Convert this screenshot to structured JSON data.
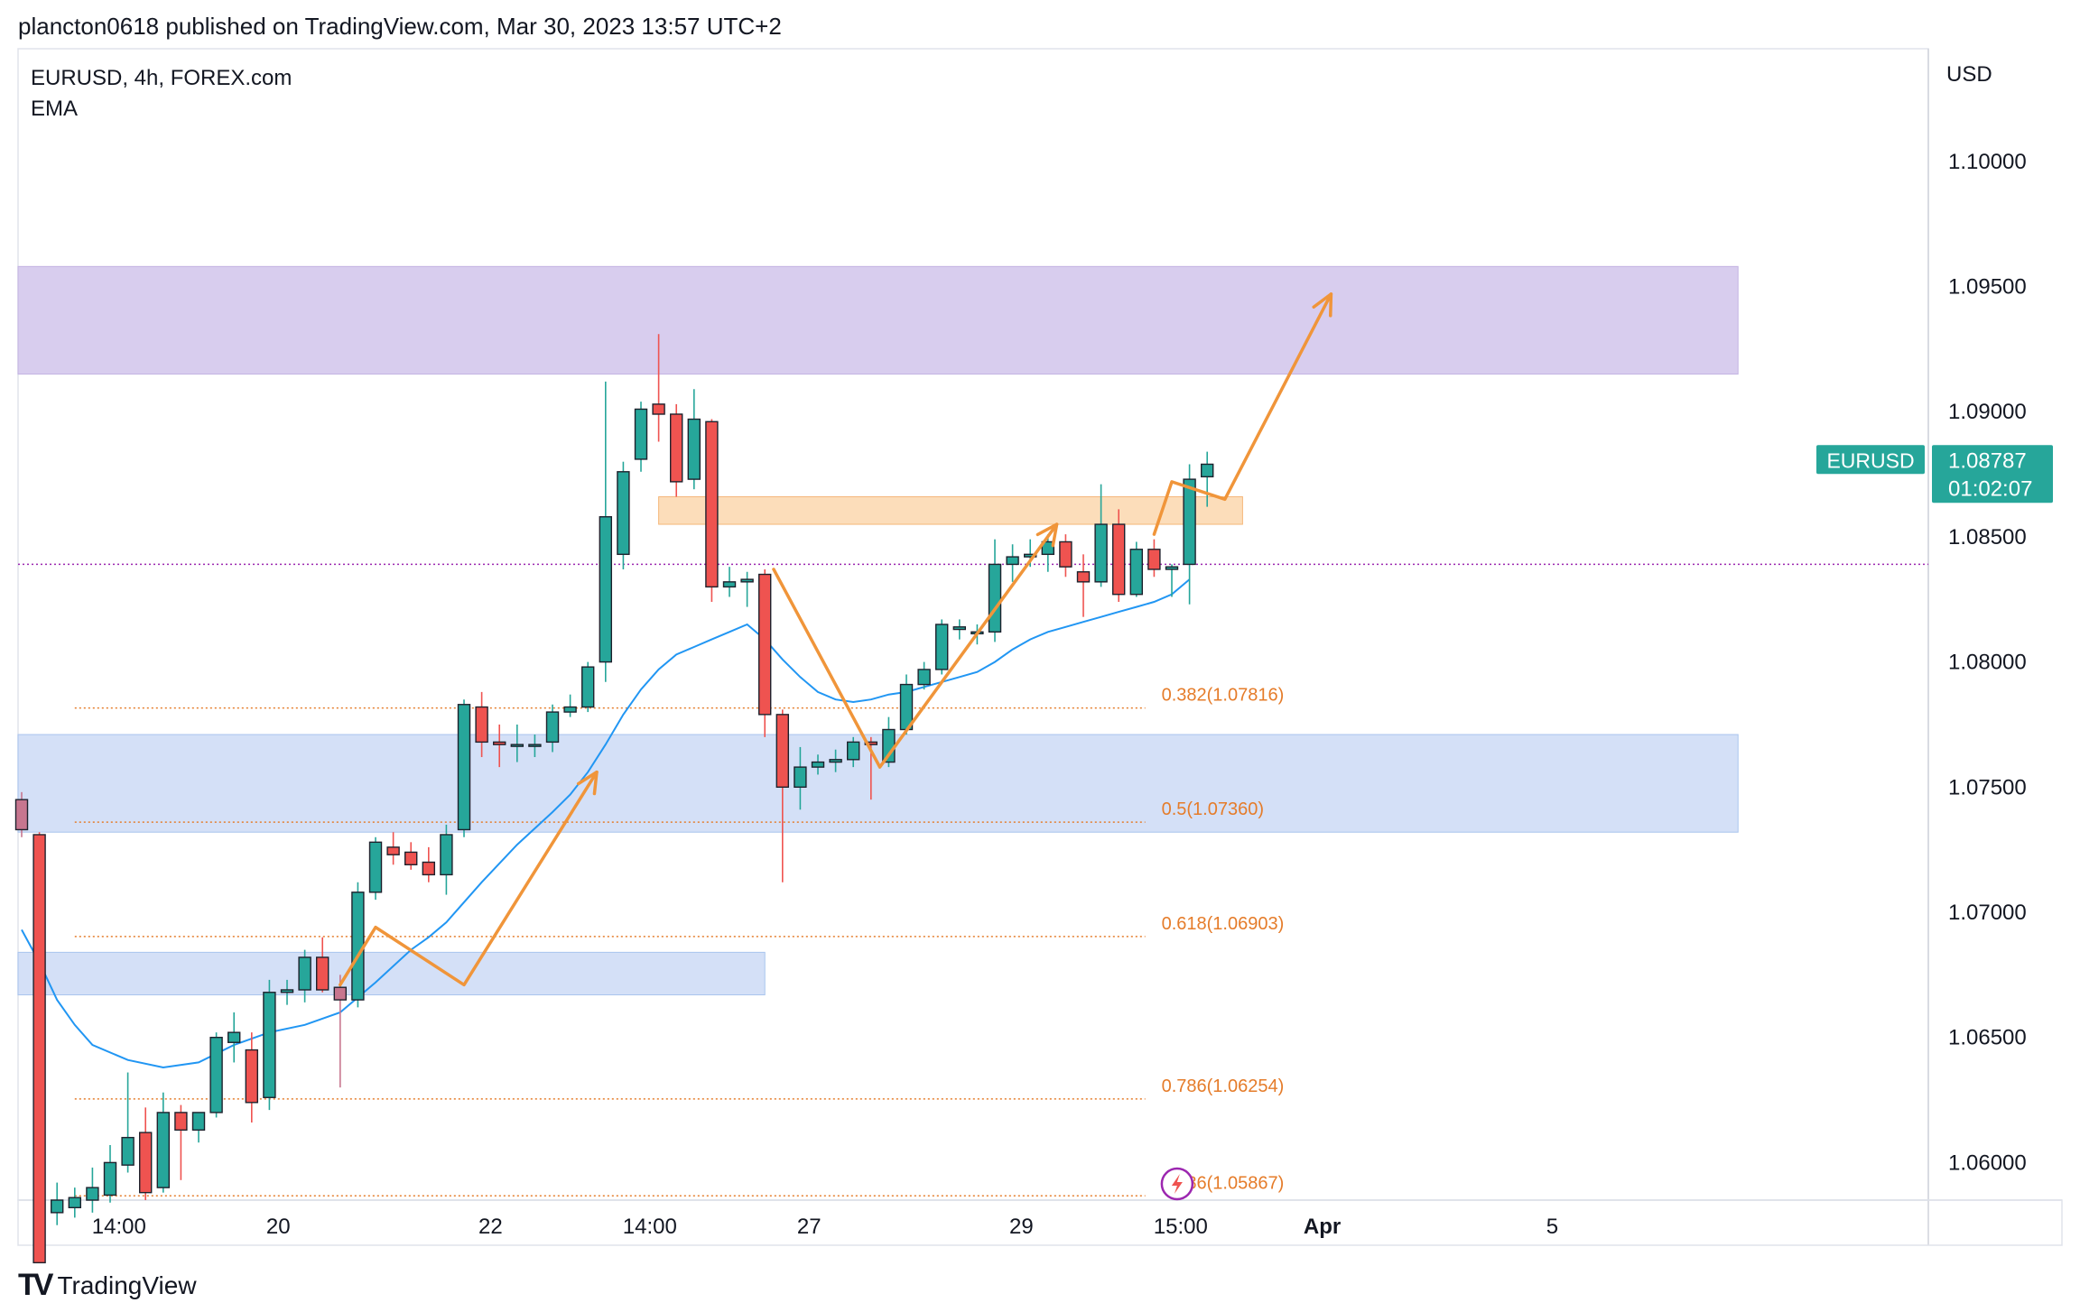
{
  "header": {
    "published_line": "plancton0618 published on TradingView.com, Mar 30, 2023 13:57 UTC+2"
  },
  "legend": {
    "symbol_line": "EURUSD, 4h, FOREX.com",
    "indicator": "EMA"
  },
  "footer": {
    "logo": "TV",
    "brand": "TradingView"
  },
  "colors": {
    "up": "#26a69a",
    "down": "#ef5350",
    "ema": "#2196f3",
    "annotation": "#f0953a",
    "fib": "#e57c2a",
    "supply_zone": "#d4c8ec",
    "demand_zone": "#cfddf6",
    "resistance": "#fcd9b3",
    "last_price_bg": "#26a69a",
    "ref_line": "#9c27b0"
  },
  "chart_data": {
    "type": "candlestick",
    "symbol": "EURUSD",
    "timeframe": "4h",
    "source": "FOREX.com",
    "currency": "USD",
    "y_range": [
      1.0585,
      1.1045
    ],
    "y_ticks": [
      "1.10000",
      "1.09500",
      "1.09000",
      "1.08500",
      "1.08000",
      "1.07500",
      "1.07000",
      "1.06500",
      "1.06000"
    ],
    "x_ticks": [
      {
        "label": "14:00",
        "bar": 5.5,
        "bold": false
      },
      {
        "label": "20",
        "bar": 14.5,
        "bold": false
      },
      {
        "label": "22",
        "bar": 26.5,
        "bold": false
      },
      {
        "label": "14:00",
        "bar": 35.5,
        "bold": false
      },
      {
        "label": "27",
        "bar": 44.5,
        "bold": false
      },
      {
        "label": "29",
        "bar": 56.5,
        "bold": false
      },
      {
        "label": "15:00",
        "bar": 65.5,
        "bold": false
      },
      {
        "label": "Apr",
        "bar": 73.5,
        "bold": true
      },
      {
        "label": "5",
        "bar": 86.5,
        "bold": false
      }
    ],
    "candles": [
      {
        "o": 1.0745,
        "h": 1.0748,
        "l": 1.073,
        "c": 1.0733,
        "dim": true
      },
      {
        "o": 1.0731,
        "h": 1.0732,
        "l": 1.056,
        "c": 1.056
      },
      {
        "o": 1.058,
        "h": 1.0592,
        "l": 1.0575,
        "c": 1.0585
      },
      {
        "o": 1.0582,
        "h": 1.059,
        "l": 1.0578,
        "c": 1.0586
      },
      {
        "o": 1.0585,
        "h": 1.0598,
        "l": 1.058,
        "c": 1.059
      },
      {
        "o": 1.0587,
        "h": 1.0607,
        "l": 1.0584,
        "c": 1.06
      },
      {
        "o": 1.0599,
        "h": 1.0636,
        "l": 1.0596,
        "c": 1.061
      },
      {
        "o": 1.0612,
        "h": 1.0622,
        "l": 1.0585,
        "c": 1.0588
      },
      {
        "o": 1.059,
        "h": 1.0628,
        "l": 1.0588,
        "c": 1.062
      },
      {
        "o": 1.062,
        "h": 1.0623,
        "l": 1.0593,
        "c": 1.0613
      },
      {
        "o": 1.0613,
        "h": 1.062,
        "l": 1.0608,
        "c": 1.062
      },
      {
        "o": 1.062,
        "h": 1.0652,
        "l": 1.0618,
        "c": 1.065
      },
      {
        "o": 1.0648,
        "h": 1.066,
        "l": 1.064,
        "c": 1.0652
      },
      {
        "o": 1.0645,
        "h": 1.0652,
        "l": 1.0616,
        "c": 1.0624
      },
      {
        "o": 1.0626,
        "h": 1.0673,
        "l": 1.0621,
        "c": 1.0668
      },
      {
        "o": 1.0668,
        "h": 1.0673,
        "l": 1.0663,
        "c": 1.0669
      },
      {
        "o": 1.0669,
        "h": 1.0685,
        "l": 1.0664,
        "c": 1.0682
      },
      {
        "o": 1.0682,
        "h": 1.069,
        "l": 1.0668,
        "c": 1.0669
      },
      {
        "o": 1.067,
        "h": 1.0675,
        "l": 1.063,
        "c": 1.0665,
        "dim": true
      },
      {
        "o": 1.0665,
        "h": 1.0712,
        "l": 1.0662,
        "c": 1.0708
      },
      {
        "o": 1.0708,
        "h": 1.073,
        "l": 1.0705,
        "c": 1.0728
      },
      {
        "o": 1.0726,
        "h": 1.0732,
        "l": 1.0719,
        "c": 1.0723
      },
      {
        "o": 1.0724,
        "h": 1.0728,
        "l": 1.0717,
        "c": 1.0719
      },
      {
        "o": 1.072,
        "h": 1.0726,
        "l": 1.0712,
        "c": 1.0715
      },
      {
        "o": 1.0715,
        "h": 1.0735,
        "l": 1.0707,
        "c": 1.0731
      },
      {
        "o": 1.0733,
        "h": 1.0785,
        "l": 1.073,
        "c": 1.0783
      },
      {
        "o": 1.0782,
        "h": 1.0788,
        "l": 1.0762,
        "c": 1.0768
      },
      {
        "o": 1.0768,
        "h": 1.0775,
        "l": 1.0758,
        "c": 1.0767
      },
      {
        "o": 1.0767,
        "h": 1.0775,
        "l": 1.076,
        "c": 1.0767
      },
      {
        "o": 1.0767,
        "h": 1.0771,
        "l": 1.0762,
        "c": 1.0767
      },
      {
        "o": 1.0768,
        "h": 1.0783,
        "l": 1.0764,
        "c": 1.078
      },
      {
        "o": 1.078,
        "h": 1.0787,
        "l": 1.0778,
        "c": 1.0782
      },
      {
        "o": 1.0782,
        "h": 1.08,
        "l": 1.078,
        "c": 1.0798
      },
      {
        "o": 1.08,
        "h": 1.0912,
        "l": 1.0792,
        "c": 1.0858
      },
      {
        "o": 1.0843,
        "h": 1.088,
        "l": 1.0837,
        "c": 1.0876
      },
      {
        "o": 1.0881,
        "h": 1.0904,
        "l": 1.0876,
        "c": 1.0901
      },
      {
        "o": 1.0903,
        "h": 1.0931,
        "l": 1.0888,
        "c": 1.0899
      },
      {
        "o": 1.0899,
        "h": 1.0903,
        "l": 1.0866,
        "c": 1.0872
      },
      {
        "o": 1.0873,
        "h": 1.0909,
        "l": 1.0869,
        "c": 1.0897
      },
      {
        "o": 1.0896,
        "h": 1.0897,
        "l": 1.0824,
        "c": 1.083
      },
      {
        "o": 1.083,
        "h": 1.0838,
        "l": 1.0826,
        "c": 1.0832
      },
      {
        "o": 1.0832,
        "h": 1.0836,
        "l": 1.0822,
        "c": 1.0833
      },
      {
        "o": 1.0835,
        "h": 1.0837,
        "l": 1.077,
        "c": 1.0779
      },
      {
        "o": 1.0779,
        "h": 1.0781,
        "l": 1.0712,
        "c": 1.075
      },
      {
        "o": 1.075,
        "h": 1.0766,
        "l": 1.0741,
        "c": 1.0758
      },
      {
        "o": 1.0758,
        "h": 1.0763,
        "l": 1.0755,
        "c": 1.076
      },
      {
        "o": 1.076,
        "h": 1.0765,
        "l": 1.0756,
        "c": 1.0761
      },
      {
        "o": 1.0761,
        "h": 1.077,
        "l": 1.0758,
        "c": 1.0768
      },
      {
        "o": 1.0768,
        "h": 1.077,
        "l": 1.0745,
        "c": 1.0767
      },
      {
        "o": 1.076,
        "h": 1.0778,
        "l": 1.0758,
        "c": 1.0773
      },
      {
        "o": 1.0773,
        "h": 1.0795,
        "l": 1.0771,
        "c": 1.0791
      },
      {
        "o": 1.0791,
        "h": 1.08,
        "l": 1.0789,
        "c": 1.0797
      },
      {
        "o": 1.0797,
        "h": 1.0817,
        "l": 1.0795,
        "c": 1.0815
      },
      {
        "o": 1.0813,
        "h": 1.0817,
        "l": 1.0809,
        "c": 1.0814
      },
      {
        "o": 1.0812,
        "h": 1.0815,
        "l": 1.0807,
        "c": 1.0812
      },
      {
        "o": 1.0812,
        "h": 1.0849,
        "l": 1.0808,
        "c": 1.0839
      },
      {
        "o": 1.0839,
        "h": 1.0847,
        "l": 1.0832,
        "c": 1.0842
      },
      {
        "o": 1.0842,
        "h": 1.0849,
        "l": 1.0838,
        "c": 1.0843
      },
      {
        "o": 1.0843,
        "h": 1.0851,
        "l": 1.0836,
        "c": 1.0848
      },
      {
        "o": 1.0848,
        "h": 1.0851,
        "l": 1.0834,
        "c": 1.0838
      },
      {
        "o": 1.0836,
        "h": 1.0843,
        "l": 1.0818,
        "c": 1.0832
      },
      {
        "o": 1.0832,
        "h": 1.0871,
        "l": 1.083,
        "c": 1.0855
      },
      {
        "o": 1.0855,
        "h": 1.0861,
        "l": 1.0824,
        "c": 1.0827
      },
      {
        "o": 1.0827,
        "h": 1.0848,
        "l": 1.0826,
        "c": 1.0845
      },
      {
        "o": 1.0845,
        "h": 1.0849,
        "l": 1.0834,
        "c": 1.0837
      },
      {
        "o": 1.0837,
        "h": 1.0839,
        "l": 1.0826,
        "c": 1.0838
      },
      {
        "o": 1.0839,
        "h": 1.0879,
        "l": 1.0823,
        "c": 1.0873
      },
      {
        "o": 1.0874,
        "h": 1.0884,
        "l": 1.0862,
        "c": 1.0879
      }
    ],
    "ema": [
      {
        "bar": 0.0,
        "v": 1.0693
      },
      {
        "bar": 1.0,
        "v": 1.068
      },
      {
        "bar": 2.0,
        "v": 1.0665
      },
      {
        "bar": 3.0,
        "v": 1.0655
      },
      {
        "bar": 4.0,
        "v": 1.0647
      },
      {
        "bar": 6.0,
        "v": 1.0641
      },
      {
        "bar": 8.0,
        "v": 1.0638
      },
      {
        "bar": 10.0,
        "v": 1.064
      },
      {
        "bar": 12.0,
        "v": 1.0647
      },
      {
        "bar": 14.0,
        "v": 1.0652
      },
      {
        "bar": 16.0,
        "v": 1.0655
      },
      {
        "bar": 18.0,
        "v": 1.066
      },
      {
        "bar": 20.0,
        "v": 1.0672
      },
      {
        "bar": 22.0,
        "v": 1.0685
      },
      {
        "bar": 23.0,
        "v": 1.069
      },
      {
        "bar": 24.0,
        "v": 1.0696
      },
      {
        "bar": 26.0,
        "v": 1.0712
      },
      {
        "bar": 28.0,
        "v": 1.0727
      },
      {
        "bar": 30.0,
        "v": 1.074
      },
      {
        "bar": 31.0,
        "v": 1.0747
      },
      {
        "bar": 32.0,
        "v": 1.0756
      },
      {
        "bar": 33.0,
        "v": 1.0767
      },
      {
        "bar": 34.0,
        "v": 1.0779
      },
      {
        "bar": 35.0,
        "v": 1.0789
      },
      {
        "bar": 36.0,
        "v": 1.0797
      },
      {
        "bar": 37.0,
        "v": 1.0803
      },
      {
        "bar": 38.0,
        "v": 1.0806
      },
      {
        "bar": 39.0,
        "v": 1.0809
      },
      {
        "bar": 40.0,
        "v": 1.0812
      },
      {
        "bar": 41.0,
        "v": 1.0815
      },
      {
        "bar": 42.0,
        "v": 1.0809
      },
      {
        "bar": 43.0,
        "v": 1.0801
      },
      {
        "bar": 44.0,
        "v": 1.0794
      },
      {
        "bar": 45.0,
        "v": 1.0788
      },
      {
        "bar": 46.0,
        "v": 1.0785
      },
      {
        "bar": 47.0,
        "v": 1.0784
      },
      {
        "bar": 48.0,
        "v": 1.0785
      },
      {
        "bar": 49.0,
        "v": 1.0787
      },
      {
        "bar": 50.0,
        "v": 1.0788
      },
      {
        "bar": 51.0,
        "v": 1.079
      },
      {
        "bar": 52.0,
        "v": 1.0792
      },
      {
        "bar": 53.0,
        "v": 1.0794
      },
      {
        "bar": 54.0,
        "v": 1.0796
      },
      {
        "bar": 55.0,
        "v": 1.08
      },
      {
        "bar": 56.0,
        "v": 1.0805
      },
      {
        "bar": 57.0,
        "v": 1.0809
      },
      {
        "bar": 58.0,
        "v": 1.0812
      },
      {
        "bar": 59.0,
        "v": 1.0814
      },
      {
        "bar": 60.0,
        "v": 1.0816
      },
      {
        "bar": 61.0,
        "v": 1.0818
      },
      {
        "bar": 62.0,
        "v": 1.082
      },
      {
        "bar": 63.0,
        "v": 1.0822
      },
      {
        "bar": 64.0,
        "v": 1.0824
      },
      {
        "bar": 65.0,
        "v": 1.0827
      },
      {
        "bar": 66.0,
        "v": 1.0833
      }
    ],
    "zones": [
      {
        "name": "supply-zone",
        "from_bar": -2.0,
        "to_bar": 97.0,
        "top": 1.0958,
        "bottom": 1.0915,
        "color": "#d4c8ec"
      },
      {
        "name": "demand-zone",
        "from_bar": -2.0,
        "to_bar": 97.0,
        "top": 1.0771,
        "bottom": 1.0732,
        "color": "#cfddf6"
      },
      {
        "name": "lower-demand-zone",
        "from_bar": -2.0,
        "to_bar": 42.0,
        "top": 1.0684,
        "bottom": 1.0667,
        "color": "#cfddf6"
      },
      {
        "name": "resistance-zone",
        "from_bar": 36.0,
        "to_bar": 69.0,
        "top": 1.0866,
        "bottom": 1.0855,
        "color": "#fcd9b3"
      }
    ],
    "fib_levels": [
      {
        "label": "0.382(1.07816)",
        "value": 1.07816
      },
      {
        "label": "0.5(1.07360)",
        "value": 1.0736
      },
      {
        "label": "0.618(1.06903)",
        "value": 1.06903
      },
      {
        "label": "0.786(1.06254)",
        "value": 1.06254
      },
      {
        "label": "0.886(1.05867)",
        "value": 1.05867
      }
    ],
    "fib_from_bar": 3.0,
    "fib_to_bar": 63.5,
    "ref_line": 1.0839,
    "annotation_paths": [
      {
        "points": [
          {
            "bar": 18.0,
            "v": 1.0671
          },
          {
            "bar": 20.0,
            "v": 1.0694
          },
          {
            "bar": 25.0,
            "v": 1.0671
          },
          {
            "bar": 32.5,
            "v": 1.0756
          }
        ],
        "arrow": true
      },
      {
        "points": [
          {
            "bar": 42.5,
            "v": 1.0837
          },
          {
            "bar": 48.5,
            "v": 1.0758
          },
          {
            "bar": 58.5,
            "v": 1.0855
          }
        ],
        "arrow": true
      },
      {
        "points": [
          {
            "bar": 64.0,
            "v": 1.0851
          },
          {
            "bar": 65.0,
            "v": 1.0872
          },
          {
            "bar": 68.0,
            "v": 1.0865
          },
          {
            "bar": 74.0,
            "v": 1.0947
          }
        ],
        "arrow": true
      }
    ],
    "last_price": {
      "symbol": "EURUSD",
      "price": "1.08787",
      "countdown": "01:02:07",
      "value": 1.08787
    },
    "marker": {
      "bar": 65.3,
      "v": 1.05915,
      "icon": "lightning-icon"
    }
  }
}
